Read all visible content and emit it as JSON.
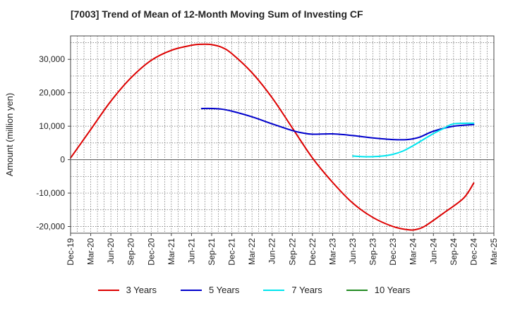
{
  "chart_data": {
    "type": "line",
    "title": "[7003]  Trend of Mean of 12-Month Moving Sum of Investing CF",
    "xlabel": "",
    "ylabel": "Amount (million yen)",
    "ylim": [
      -22000,
      37000
    ],
    "y_ticks": [
      30000,
      20000,
      10000,
      0,
      -10000,
      -20000
    ],
    "y_tick_labels": [
      "30,000",
      "20,000",
      "10,000",
      "0",
      "-10,000",
      "-20,000"
    ],
    "x_tick_labels": [
      "Dec-19",
      "Mar-20",
      "Jun-20",
      "Sep-20",
      "Dec-20",
      "Mar-21",
      "Jun-21",
      "Sep-21",
      "Dec-21",
      "Mar-22",
      "Jun-22",
      "Sep-22",
      "Dec-22",
      "Mar-23",
      "Jun-23",
      "Sep-23",
      "Dec-23",
      "Mar-24",
      "Jun-24",
      "Sep-24",
      "Dec-24",
      "Mar-25"
    ],
    "grid": true,
    "legend_position": "bottom",
    "series": [
      {
        "name": "3 Years",
        "color": "#dd0000",
        "points": [
          [
            0,
            500
          ],
          [
            1,
            9000
          ],
          [
            2,
            17500
          ],
          [
            3,
            24500
          ],
          [
            4,
            29700
          ],
          [
            5,
            32700
          ],
          [
            6,
            34200
          ],
          [
            6.5,
            34500
          ],
          [
            7,
            34400
          ],
          [
            7.5,
            33600
          ],
          [
            8,
            31700
          ],
          [
            9,
            26000
          ],
          [
            10,
            18500
          ],
          [
            11,
            9500
          ],
          [
            12,
            500
          ],
          [
            13,
            -6800
          ],
          [
            14,
            -13000
          ],
          [
            15,
            -17300
          ],
          [
            16,
            -20000
          ],
          [
            16.8,
            -21000
          ],
          [
            17.2,
            -20800
          ],
          [
            17.6,
            -19800
          ],
          [
            18.5,
            -16000
          ],
          [
            19.5,
            -11500
          ],
          [
            20,
            -7000
          ]
        ]
      },
      {
        "name": "5 Years",
        "color": "#0000cc",
        "points": [
          [
            6.5,
            15300
          ],
          [
            7,
            15300
          ],
          [
            7.5,
            15100
          ],
          [
            8,
            14500
          ],
          [
            9,
            12800
          ],
          [
            10,
            10700
          ],
          [
            11,
            8700
          ],
          [
            11.5,
            8000
          ],
          [
            12,
            7600
          ],
          [
            13,
            7700
          ],
          [
            14,
            7200
          ],
          [
            15,
            6500
          ],
          [
            16,
            6000
          ],
          [
            16.7,
            6000
          ],
          [
            17.3,
            6700
          ],
          [
            18,
            8500
          ],
          [
            19,
            10000
          ],
          [
            20,
            10500
          ]
        ]
      },
      {
        "name": "7 Years",
        "color": "#00e5ee",
        "points": [
          [
            14,
            1100
          ],
          [
            14.5,
            900
          ],
          [
            15,
            900
          ],
          [
            15.5,
            1100
          ],
          [
            16,
            1600
          ],
          [
            16.5,
            2600
          ],
          [
            17,
            4200
          ],
          [
            17.5,
            6000
          ],
          [
            18,
            7800
          ],
          [
            18.5,
            9300
          ],
          [
            19,
            10700
          ],
          [
            20,
            10900
          ]
        ]
      },
      {
        "name": "10 Years",
        "color": "#228b22",
        "points": []
      }
    ]
  }
}
